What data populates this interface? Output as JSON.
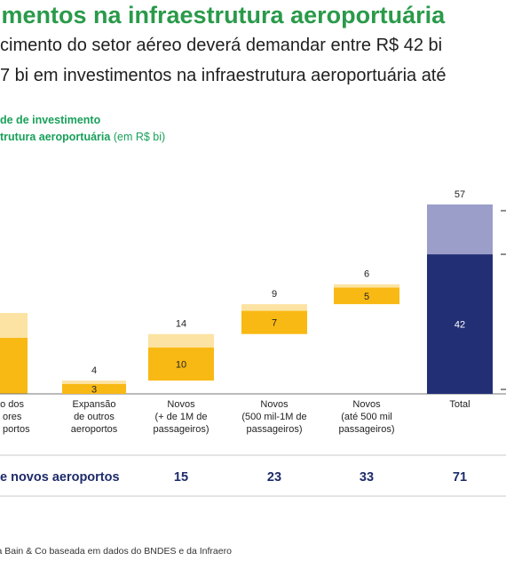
{
  "title": "imentos na infraestrutura aeroportuária",
  "subtitle_line1": "cimento do setor aéreo deverá demandar entre R$ 42 bi",
  "subtitle_line2": "7 bi em investimentos na infraestrutura aeroportuária até",
  "chart_label_line1": "de de investimento",
  "chart_label_line2_bold": "trutura aeroportuária",
  "chart_label_line2_unit": "(em R$ bi)",
  "row_label": "e novos aeroportos",
  "source": "tiva Bain & Co baseada em dados do BNDES e da Infraero",
  "colors": {
    "title_green": "#2a9a4a",
    "bar_min": "#f9b914",
    "bar_extra": "#fce3a3",
    "total_min": "#232f75",
    "total_extra": "#9a9ec9",
    "row_value": "#1e2b6a"
  },
  "chart_data": {
    "type": "bar",
    "subtype": "waterfall",
    "categories": [
      [
        "ão dos",
        "ores",
        "portos"
      ],
      [
        "Expansão",
        "de outros",
        "aeroportos"
      ],
      [
        "Novos",
        "(+ de 1M de",
        "passageiros)"
      ],
      [
        "Novos",
        "(500 mil-1M de",
        "passageiros)"
      ],
      [
        "Novos",
        "(até 500 mil",
        "passageiros)"
      ],
      [
        "Total"
      ]
    ],
    "series": [
      {
        "values": [
          null,
          3,
          10,
          7,
          5,
          42
        ]
      },
      {
        "values": [
          null,
          1,
          4,
          2,
          1,
          15
        ]
      }
    ],
    "totals": [
      null,
      4,
      14,
      9,
      6,
      57
    ],
    "segment_labels": [
      "",
      "3",
      "10",
      "7",
      "5",
      "42"
    ],
    "total_labels": [
      "",
      "4",
      "14",
      "9",
      "6",
      "57"
    ],
    "novos_aeroportos": [
      "",
      "15",
      "23",
      "33",
      "71"
    ],
    "ylim": [
      0,
      57
    ]
  }
}
